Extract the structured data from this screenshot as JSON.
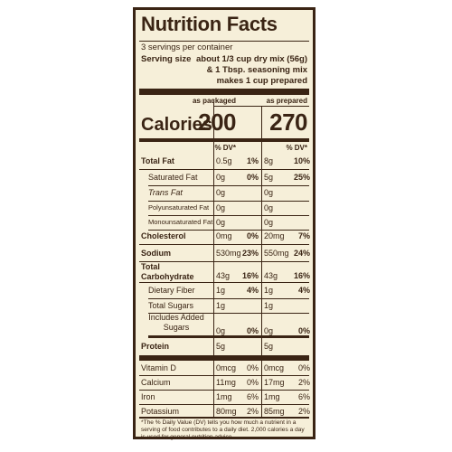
{
  "title": "Nutrition Facts",
  "servings": "3 servings per container",
  "serving_size_label": "Serving size",
  "serving_size_lines": [
    "about 1/3 cup dry mix (56g)",
    "& 1 Tbsp. seasoning mix",
    "makes 1 cup prepared"
  ],
  "col_headers": {
    "packaged": "as packaged",
    "prepared": "as prepared"
  },
  "calories_label": "Calories",
  "calories": {
    "packaged": "200",
    "prepared": "270"
  },
  "dv_label": "% DV*",
  "nutrients": [
    {
      "label": "Total Fat",
      "bold": true,
      "indent": false,
      "italic": false,
      "p_amt": "0.5g",
      "p_dv": "1%",
      "r_amt": "8g",
      "r_dv": "10%"
    },
    {
      "label": "Saturated Fat",
      "bold": false,
      "indent": true,
      "italic": false,
      "p_amt": "0g",
      "p_dv": "0%",
      "r_amt": "5g",
      "r_dv": "25%"
    },
    {
      "label": "Trans Fat",
      "bold": false,
      "indent": true,
      "italic": true,
      "p_amt": "0g",
      "p_dv": "",
      "r_amt": "0g",
      "r_dv": ""
    },
    {
      "label": "Polyunsaturated Fat",
      "bold": false,
      "indent": true,
      "italic": false,
      "small": true,
      "p_amt": "0g",
      "p_dv": "",
      "r_amt": "0g",
      "r_dv": ""
    },
    {
      "label": "Monounsaturated Fat",
      "bold": false,
      "indent": true,
      "italic": false,
      "small": true,
      "p_amt": "0g",
      "p_dv": "",
      "r_amt": "0g",
      "r_dv": ""
    },
    {
      "label": "Cholesterol",
      "bold": true,
      "indent": false,
      "italic": false,
      "p_amt": "0mg",
      "p_dv": "0%",
      "r_amt": "20mg",
      "r_dv": "7%"
    },
    {
      "label": "Sodium",
      "bold": true,
      "indent": false,
      "italic": false,
      "p_amt": "530mg",
      "p_dv": "23%",
      "r_amt": "550mg",
      "r_dv": "24%"
    },
    {
      "label": "Total Carbohydrate",
      "bold": true,
      "indent": false,
      "italic": false,
      "p_amt": "43g",
      "p_dv": "16%",
      "r_amt": "43g",
      "r_dv": "16%"
    },
    {
      "label": "Dietary Fiber",
      "bold": false,
      "indent": true,
      "italic": false,
      "p_amt": "1g",
      "p_dv": "4%",
      "r_amt": "1g",
      "r_dv": "4%"
    },
    {
      "label": "Total Sugars",
      "bold": false,
      "indent": true,
      "italic": false,
      "p_amt": "1g",
      "p_dv": "",
      "r_amt": "1g",
      "r_dv": ""
    },
    {
      "label": "Includes Added Sugars",
      "bold": false,
      "indent": true,
      "italic": false,
      "p_amt": "0g",
      "p_dv": "0%",
      "r_amt": "0g",
      "r_dv": "0%"
    },
    {
      "label": "Protein",
      "bold": true,
      "indent": false,
      "italic": false,
      "p_amt": "5g",
      "p_dv": "",
      "r_amt": "5g",
      "r_dv": ""
    },
    {
      "label": "Vitamin D",
      "bold": false,
      "indent": false,
      "italic": false,
      "p_amt": "0mcg",
      "p_dv": "0%",
      "r_amt": "0mcg",
      "r_dv": "0%"
    },
    {
      "label": "Calcium",
      "bold": false,
      "indent": false,
      "italic": false,
      "p_amt": "11mg",
      "p_dv": "0%",
      "r_amt": "17mg",
      "r_dv": "2%"
    },
    {
      "label": "Iron",
      "bold": false,
      "indent": false,
      "italic": false,
      "p_amt": "1mg",
      "p_dv": "6%",
      "r_amt": "1mg",
      "r_dv": "6%"
    },
    {
      "label": "Potassium",
      "bold": false,
      "indent": false,
      "italic": false,
      "p_amt": "80mg",
      "p_dv": "2%",
      "r_amt": "85mg",
      "r_dv": "2%"
    }
  ],
  "footnote": "*The % Daily Value (DV) tells you how much a nutrient in a serving of food contributes to a daily diet. 2,000 calories a day is used for general nutrition advice.",
  "colors": {
    "ink": "#3a2414",
    "panel": "#f6efd9"
  }
}
